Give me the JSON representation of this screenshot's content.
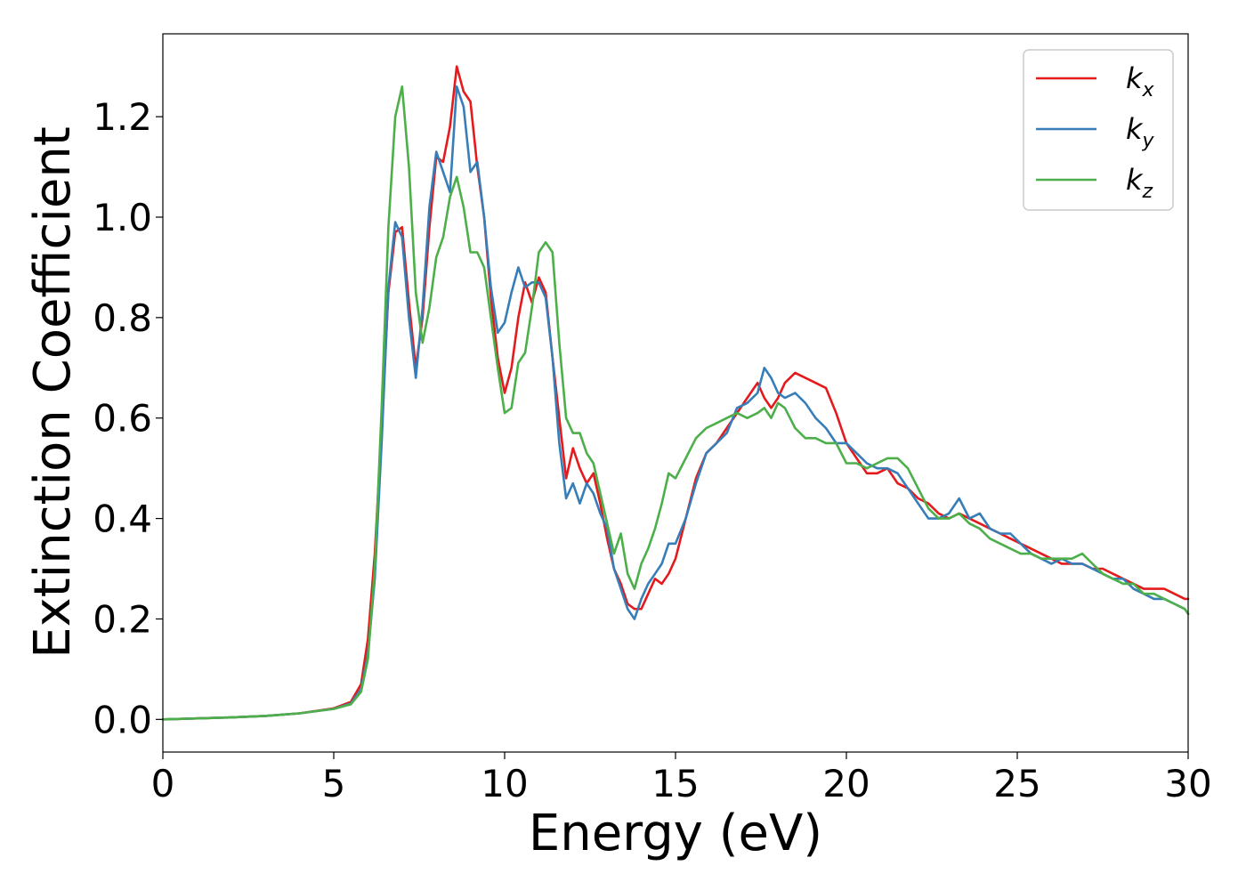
{
  "chart_data": {
    "type": "line",
    "title": "",
    "xlabel": "Energy (eV)",
    "ylabel": "Extinction Coefficient",
    "xlim": [
      0,
      30
    ],
    "ylim": [
      -0.065,
      1.365
    ],
    "xticks": [
      0,
      5,
      10,
      15,
      20,
      25,
      30
    ],
    "yticks": [
      0.0,
      0.2,
      0.4,
      0.6,
      0.8,
      1.0,
      1.2
    ],
    "xtick_labels": [
      "0",
      "5",
      "10",
      "15",
      "20",
      "25",
      "30"
    ],
    "ytick_labels": [
      "0.0",
      "0.2",
      "0.4",
      "0.6",
      "0.8",
      "1.0",
      "1.2"
    ],
    "grid": false,
    "legend_position": "top-right",
    "series": [
      {
        "name": "k",
        "subscript": "x",
        "color": "#e41a1c",
        "x": [
          0,
          1,
          2,
          3,
          4,
          5,
          5.5,
          5.8,
          6.0,
          6.2,
          6.4,
          6.6,
          6.8,
          7.0,
          7.2,
          7.4,
          7.6,
          7.8,
          8.0,
          8.2,
          8.4,
          8.6,
          8.8,
          9.0,
          9.2,
          9.4,
          9.6,
          9.8,
          10.0,
          10.2,
          10.4,
          10.6,
          10.8,
          11.0,
          11.2,
          11.4,
          11.6,
          11.8,
          12.0,
          12.2,
          12.4,
          12.6,
          12.8,
          13.0,
          13.2,
          13.4,
          13.6,
          13.8,
          14.0,
          14.2,
          14.4,
          14.6,
          14.8,
          15.0,
          15.3,
          15.6,
          15.9,
          16.2,
          16.5,
          16.8,
          17.1,
          17.4,
          17.6,
          17.8,
          18.0,
          18.2,
          18.5,
          18.8,
          19.1,
          19.4,
          19.7,
          20.0,
          20.3,
          20.6,
          20.9,
          21.2,
          21.5,
          21.8,
          22.1,
          22.4,
          22.7,
          23.0,
          23.3,
          23.6,
          23.9,
          24.2,
          24.5,
          24.8,
          25.1,
          25.4,
          25.7,
          26.0,
          26.3,
          26.6,
          26.9,
          27.2,
          27.5,
          27.8,
          28.1,
          28.4,
          28.7,
          29.0,
          29.3,
          29.6,
          29.9,
          30.0
        ],
        "values": [
          0.0,
          0.002,
          0.004,
          0.007,
          0.012,
          0.022,
          0.035,
          0.07,
          0.16,
          0.33,
          0.58,
          0.85,
          0.97,
          0.98,
          0.83,
          0.7,
          0.8,
          0.98,
          1.12,
          1.11,
          1.18,
          1.3,
          1.25,
          1.23,
          1.1,
          1.0,
          0.84,
          0.72,
          0.65,
          0.7,
          0.8,
          0.87,
          0.83,
          0.88,
          0.85,
          0.72,
          0.6,
          0.48,
          0.54,
          0.5,
          0.47,
          0.49,
          0.43,
          0.36,
          0.3,
          0.27,
          0.23,
          0.22,
          0.22,
          0.25,
          0.28,
          0.27,
          0.29,
          0.32,
          0.4,
          0.48,
          0.53,
          0.55,
          0.58,
          0.61,
          0.64,
          0.67,
          0.64,
          0.62,
          0.64,
          0.67,
          0.69,
          0.68,
          0.67,
          0.66,
          0.61,
          0.55,
          0.52,
          0.49,
          0.49,
          0.5,
          0.47,
          0.46,
          0.44,
          0.43,
          0.41,
          0.4,
          0.41,
          0.4,
          0.39,
          0.38,
          0.37,
          0.36,
          0.35,
          0.34,
          0.33,
          0.32,
          0.31,
          0.31,
          0.31,
          0.3,
          0.3,
          0.29,
          0.28,
          0.27,
          0.26,
          0.26,
          0.26,
          0.25,
          0.24,
          0.24
        ]
      },
      {
        "name": "k",
        "subscript": "y",
        "color": "#377eb8",
        "x": [
          0,
          1,
          2,
          3,
          4,
          5,
          5.5,
          5.8,
          6.0,
          6.2,
          6.4,
          6.6,
          6.8,
          7.0,
          7.2,
          7.4,
          7.6,
          7.8,
          8.0,
          8.2,
          8.4,
          8.6,
          8.8,
          9.0,
          9.2,
          9.4,
          9.6,
          9.8,
          10.0,
          10.2,
          10.4,
          10.6,
          10.8,
          11.0,
          11.2,
          11.4,
          11.6,
          11.8,
          12.0,
          12.2,
          12.4,
          12.6,
          12.8,
          13.0,
          13.2,
          13.4,
          13.6,
          13.8,
          14.0,
          14.2,
          14.4,
          14.6,
          14.8,
          15.0,
          15.3,
          15.6,
          15.9,
          16.2,
          16.5,
          16.8,
          17.1,
          17.4,
          17.6,
          17.8,
          18.0,
          18.2,
          18.5,
          18.8,
          19.1,
          19.4,
          19.7,
          20.0,
          20.3,
          20.6,
          20.9,
          21.2,
          21.5,
          21.8,
          22.1,
          22.4,
          22.7,
          23.0,
          23.3,
          23.6,
          23.9,
          24.2,
          24.5,
          24.8,
          25.1,
          25.4,
          25.7,
          26.0,
          26.3,
          26.6,
          26.9,
          27.2,
          27.5,
          27.8,
          28.1,
          28.4,
          28.7,
          29.0,
          29.3,
          29.6,
          29.9,
          30.0
        ],
        "values": [
          0.0,
          0.002,
          0.004,
          0.007,
          0.012,
          0.021,
          0.032,
          0.06,
          0.13,
          0.28,
          0.55,
          0.86,
          0.99,
          0.96,
          0.8,
          0.68,
          0.82,
          1.02,
          1.13,
          1.09,
          1.05,
          1.26,
          1.22,
          1.09,
          1.11,
          1.0,
          0.86,
          0.77,
          0.79,
          0.85,
          0.9,
          0.86,
          0.87,
          0.87,
          0.84,
          0.72,
          0.55,
          0.44,
          0.47,
          0.43,
          0.47,
          0.45,
          0.41,
          0.38,
          0.3,
          0.26,
          0.22,
          0.2,
          0.24,
          0.27,
          0.29,
          0.31,
          0.35,
          0.35,
          0.4,
          0.47,
          0.53,
          0.55,
          0.57,
          0.62,
          0.63,
          0.65,
          0.7,
          0.68,
          0.65,
          0.64,
          0.65,
          0.63,
          0.6,
          0.58,
          0.55,
          0.55,
          0.53,
          0.51,
          0.5,
          0.5,
          0.49,
          0.46,
          0.43,
          0.4,
          0.4,
          0.41,
          0.44,
          0.4,
          0.41,
          0.38,
          0.37,
          0.37,
          0.35,
          0.33,
          0.32,
          0.31,
          0.32,
          0.31,
          0.31,
          0.3,
          0.29,
          0.28,
          0.28,
          0.26,
          0.25,
          0.24,
          0.24,
          0.23,
          0.22,
          0.21
        ]
      },
      {
        "name": "k",
        "subscript": "z",
        "color": "#4daf4a",
        "x": [
          0,
          1,
          2,
          3,
          4,
          5,
          5.5,
          5.8,
          6.0,
          6.2,
          6.4,
          6.6,
          6.8,
          7.0,
          7.2,
          7.4,
          7.6,
          7.8,
          8.0,
          8.2,
          8.4,
          8.6,
          8.8,
          9.0,
          9.2,
          9.4,
          9.6,
          9.8,
          10.0,
          10.2,
          10.4,
          10.6,
          10.8,
          11.0,
          11.2,
          11.4,
          11.6,
          11.8,
          12.0,
          12.2,
          12.4,
          12.6,
          12.8,
          13.0,
          13.2,
          13.4,
          13.6,
          13.8,
          14.0,
          14.2,
          14.4,
          14.6,
          14.8,
          15.0,
          15.3,
          15.6,
          15.9,
          16.2,
          16.5,
          16.8,
          17.1,
          17.4,
          17.6,
          17.8,
          18.0,
          18.2,
          18.5,
          18.8,
          19.1,
          19.4,
          19.7,
          20.0,
          20.3,
          20.6,
          20.9,
          21.2,
          21.5,
          21.8,
          22.1,
          22.4,
          22.7,
          23.0,
          23.3,
          23.6,
          23.9,
          24.2,
          24.5,
          24.8,
          25.1,
          25.4,
          25.7,
          26.0,
          26.3,
          26.6,
          26.9,
          27.2,
          27.5,
          27.8,
          28.1,
          28.4,
          28.7,
          29.0,
          29.3,
          29.6,
          29.9,
          30.0
        ],
        "values": [
          0.0,
          0.002,
          0.004,
          0.007,
          0.012,
          0.021,
          0.03,
          0.055,
          0.12,
          0.3,
          0.62,
          0.98,
          1.2,
          1.26,
          1.1,
          0.85,
          0.75,
          0.82,
          0.92,
          0.96,
          1.04,
          1.08,
          1.02,
          0.93,
          0.93,
          0.9,
          0.8,
          0.7,
          0.61,
          0.62,
          0.71,
          0.73,
          0.82,
          0.93,
          0.95,
          0.93,
          0.75,
          0.6,
          0.57,
          0.57,
          0.53,
          0.51,
          0.45,
          0.39,
          0.33,
          0.37,
          0.29,
          0.26,
          0.31,
          0.34,
          0.38,
          0.43,
          0.49,
          0.48,
          0.52,
          0.56,
          0.58,
          0.59,
          0.6,
          0.61,
          0.6,
          0.61,
          0.62,
          0.6,
          0.63,
          0.62,
          0.58,
          0.56,
          0.56,
          0.55,
          0.55,
          0.51,
          0.51,
          0.5,
          0.51,
          0.52,
          0.52,
          0.5,
          0.46,
          0.42,
          0.4,
          0.4,
          0.41,
          0.39,
          0.38,
          0.36,
          0.35,
          0.34,
          0.33,
          0.33,
          0.32,
          0.32,
          0.32,
          0.32,
          0.33,
          0.31,
          0.29,
          0.28,
          0.27,
          0.27,
          0.25,
          0.25,
          0.24,
          0.23,
          0.22,
          0.21
        ]
      }
    ]
  }
}
